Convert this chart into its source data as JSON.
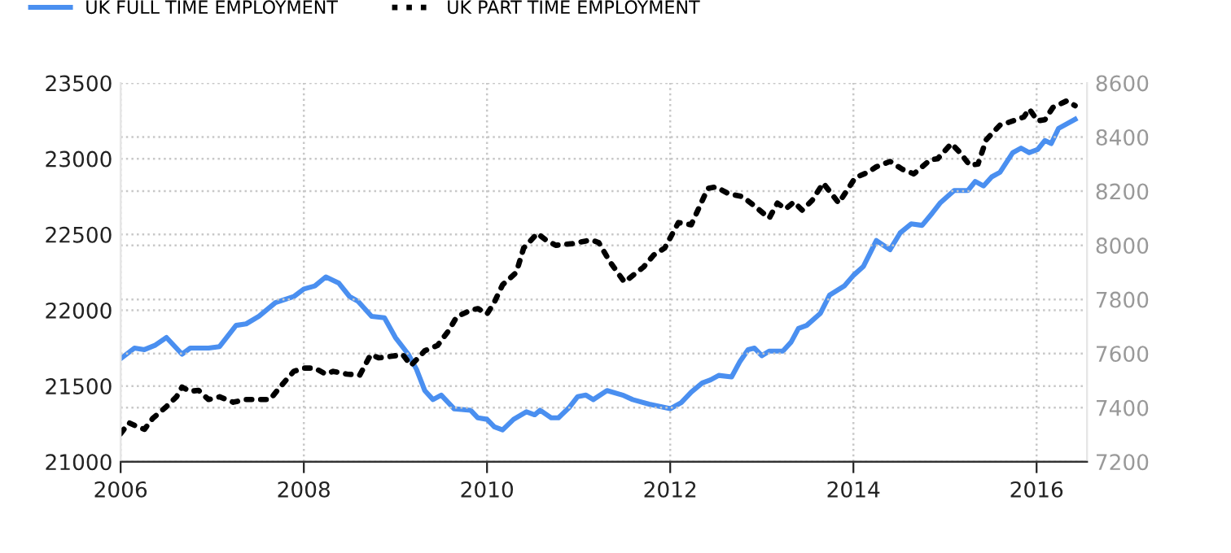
{
  "chart_data": {
    "type": "line",
    "xlim": [
      2006,
      2016.55
    ],
    "xticks": [
      2006,
      2008,
      2010,
      2012,
      2014,
      2016
    ],
    "ylim": [
      21000,
      23500
    ],
    "yticks": [
      21000,
      21500,
      22000,
      22500,
      23000,
      23500
    ],
    "y2lim": [
      7200,
      8600
    ],
    "y2ticks": [
      7200,
      7400,
      7600,
      7800,
      8000,
      8200,
      8400,
      8600
    ],
    "grid": true,
    "legend": "top left",
    "marker": "none",
    "series": [
      {
        "name": "UK FULL TIME EMPLOYMENT",
        "color": "#4a8ff0",
        "line_style": "solid",
        "x": [
          2006.0,
          2006.15,
          2006.26,
          2006.38,
          2006.5,
          2006.67,
          2006.76,
          2006.96,
          2007.08,
          2007.26,
          2007.37,
          2007.51,
          2007.69,
          2007.89,
          2008.0,
          2008.12,
          2008.24,
          2008.38,
          2008.5,
          2008.59,
          2008.74,
          2008.88,
          2009.0,
          2009.14,
          2009.23,
          2009.32,
          2009.41,
          2009.5,
          2009.64,
          2009.82,
          2009.9,
          2010.0,
          2010.08,
          2010.17,
          2010.29,
          2010.43,
          2010.52,
          2010.58,
          2010.7,
          2010.78,
          2010.9,
          2010.99,
          2011.08,
          2011.16,
          2011.31,
          2011.48,
          2011.59,
          2011.77,
          2012.0,
          2012.12,
          2012.23,
          2012.35,
          2012.44,
          2012.53,
          2012.67,
          2012.76,
          2012.85,
          2012.92,
          2013.0,
          2013.08,
          2013.23,
          2013.32,
          2013.4,
          2013.49,
          2013.64,
          2013.74,
          2013.9,
          2014.0,
          2014.11,
          2014.25,
          2014.4,
          2014.51,
          2014.63,
          2014.75,
          2014.86,
          2014.95,
          2015.1,
          2015.25,
          2015.33,
          2015.42,
          2015.51,
          2015.6,
          2015.74,
          2015.83,
          2015.92,
          2016.01,
          2016.09,
          2016.16,
          2016.24,
          2016.42
        ],
        "values": [
          21680,
          21750,
          21740,
          21770,
          21820,
          21710,
          21750,
          21750,
          21760,
          21900,
          21910,
          21960,
          22050,
          22090,
          22140,
          22160,
          22220,
          22180,
          22090,
          22060,
          21960,
          21950,
          21820,
          21710,
          21610,
          21470,
          21410,
          21440,
          21350,
          21340,
          21290,
          21280,
          21230,
          21210,
          21280,
          21330,
          21310,
          21340,
          21290,
          21290,
          21360,
          21430,
          21440,
          21410,
          21470,
          21440,
          21410,
          21380,
          21350,
          21390,
          21460,
          21520,
          21540,
          21570,
          21560,
          21660,
          21740,
          21750,
          21700,
          21730,
          21730,
          21790,
          21880,
          21900,
          21980,
          22100,
          22160,
          22230,
          22290,
          22460,
          22400,
          22510,
          22570,
          22560,
          22640,
          22710,
          22790,
          22790,
          22850,
          22820,
          22880,
          22910,
          23040,
          23070,
          23040,
          23060,
          23120,
          23100,
          23200,
          23260
        ]
      },
      {
        "name": "UK PART TIME EMPLOYMENT",
        "color": "#000000",
        "line_style": "dotted",
        "axis": "y2",
        "x": [
          2006.0,
          2006.09,
          2006.18,
          2006.26,
          2006.35,
          2006.5,
          2006.61,
          2006.67,
          2006.76,
          2006.85,
          2006.96,
          2007.08,
          2007.23,
          2007.37,
          2007.63,
          2007.75,
          2007.89,
          2008.0,
          2008.12,
          2008.24,
          2008.32,
          2008.47,
          2008.61,
          2008.73,
          2008.82,
          2008.96,
          2009.08,
          2009.17,
          2009.32,
          2009.46,
          2009.58,
          2009.67,
          2009.82,
          2009.9,
          2010.0,
          2010.08,
          2010.17,
          2010.32,
          2010.4,
          2010.55,
          2010.64,
          2010.75,
          2010.93,
          2011.14,
          2011.22,
          2011.34,
          2011.5,
          2011.71,
          2011.82,
          2011.94,
          2012.09,
          2012.23,
          2012.41,
          2012.5,
          2012.64,
          2012.79,
          2012.94,
          2013.08,
          2013.17,
          2013.26,
          2013.35,
          2013.44,
          2013.55,
          2013.67,
          2013.84,
          2014.02,
          2014.16,
          2014.25,
          2014.4,
          2014.54,
          2014.66,
          2014.84,
          2014.92,
          2015.07,
          2015.16,
          2015.27,
          2015.36,
          2015.45,
          2015.6,
          2015.71,
          2015.86,
          2015.92,
          2016.01,
          2016.09,
          2016.18,
          2016.33,
          2016.42
        ],
        "values": [
          7304,
          7344,
          7330,
          7320,
          7360,
          7404,
          7440,
          7476,
          7460,
          7464,
          7430,
          7440,
          7420,
          7430,
          7430,
          7480,
          7534,
          7546,
          7546,
          7524,
          7534,
          7524,
          7520,
          7596,
          7584,
          7590,
          7596,
          7556,
          7610,
          7630,
          7684,
          7736,
          7760,
          7766,
          7746,
          7790,
          7854,
          7900,
          7990,
          8044,
          8020,
          8000,
          8006,
          8020,
          8010,
          7940,
          7864,
          7920,
          7964,
          7990,
          8084,
          8076,
          8210,
          8216,
          8190,
          8180,
          8140,
          8100,
          8156,
          8134,
          8160,
          8130,
          8166,
          8230,
          8156,
          8250,
          8270,
          8290,
          8310,
          8280,
          8264,
          8316,
          8320,
          8376,
          8344,
          8296,
          8300,
          8390,
          8444,
          8456,
          8474,
          8504,
          8460,
          8464,
          8510,
          8534,
          8516
        ]
      }
    ]
  }
}
